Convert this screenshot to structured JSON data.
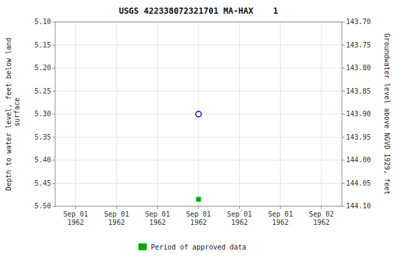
{
  "chart_data": {
    "type": "scatter",
    "title": "USGS 422338072321701 MA-HAX    1",
    "y_label": "Depth to water level, feet below land\n surface",
    "y2_label": "Groundwater level above NGVD 1929, feet",
    "categories": [
      "Sep 01\n1962",
      "Sep 01\n1962",
      "Sep 01\n1962",
      "Sep 01\n1962",
      "Sep 01\n1962",
      "Sep 01\n1962",
      "Sep 02\n1962"
    ],
    "series": [
      {
        "color": "#0000cc",
        "marker": "circle",
        "values": [
          null,
          null,
          null,
          5.3,
          null,
          null,
          null
        ]
      },
      {
        "name": "Period of approved data",
        "color": "#00aa00",
        "marker": "square",
        "values": [
          null,
          null,
          null,
          5.485,
          null,
          null,
          null
        ]
      }
    ],
    "ylim": [
      5.5,
      5.1
    ],
    "yticks": [
      {
        "value": 5.1,
        "label": "5.10"
      },
      5.15,
      {
        "value": 5.2,
        "label": "5.20"
      },
      5.25,
      {
        "value": 5.3,
        "label": "5.30"
      },
      5.35,
      {
        "value": 5.4,
        "label": "5.40"
      },
      5.45,
      {
        "value": 5.5,
        "label": "5.50"
      }
    ],
    "y2lim": [
      144.1,
      143.7
    ],
    "y2ticks": [
      {
        "value": 144.1,
        "label": "144.10"
      },
      144.05,
      {
        "value": 144.0,
        "label": "144.00"
      },
      143.95,
      {
        "value": 143.9,
        "label": "143.90"
      },
      143.85,
      {
        "value": 143.8,
        "label": "143.80"
      },
      143.75,
      {
        "value": 143.7,
        "label": "143.70"
      }
    ],
    "grid": true,
    "legend": "bottom"
  }
}
